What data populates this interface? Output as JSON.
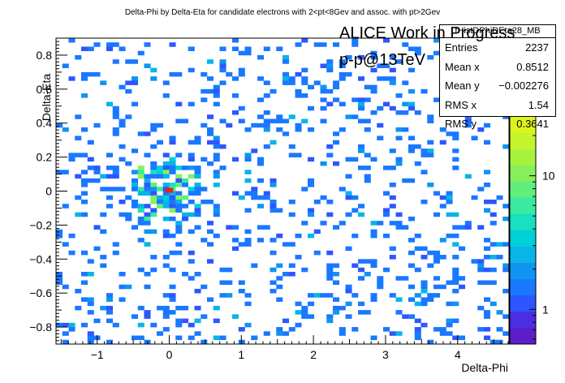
{
  "chart_data": {
    "type": "heatmap",
    "title": "Delta-Phi by Delta-Eta for candidate electrons with 2<pt<8Gev and assoc. with pt>2Gev",
    "xlabel": "Delta-Phi",
    "ylabel": "Delta-Eta",
    "xlim": [
      -1.5708,
      4.7124
    ],
    "ylim": [
      -0.9,
      0.9
    ],
    "xticks": [
      "−1",
      "0",
      "1",
      "2",
      "3",
      "4"
    ],
    "xtick_values": [
      -1,
      0,
      1,
      2,
      3,
      4
    ],
    "yticks": [
      "−0.8",
      "−0.6",
      "−0.4",
      "−0.2",
      "0",
      "0.2",
      "0.4",
      "0.6",
      "0.8"
    ],
    "ytick_values": [
      -0.8,
      -0.6,
      -0.4,
      -0.2,
      0,
      0.2,
      0.4,
      0.6,
      0.8
    ],
    "z_scale": "log",
    "z_ticks": [
      "1",
      "10"
    ],
    "palette": [
      "#5c1ec8",
      "#4b2ee0",
      "#2d56ff",
      "#1a78ff",
      "#0f95f0",
      "#08b4e8",
      "#00d0d8",
      "#18e0c0",
      "#3aeaa0",
      "#60ee7c",
      "#86f05a",
      "#a8f23e",
      "#c6f42c",
      "#dcf41e"
    ],
    "peak": {
      "x": 0.0,
      "y": 0.0,
      "color": "#e8231e"
    },
    "grid": false
  },
  "annotation": {
    "line1": "ALICE Work in Progress",
    "line2": "p-p@13TeV"
  },
  "stats": {
    "name": "fHistDPhiDEta28_MB",
    "rows": [
      {
        "label": "Entries",
        "value": "2237"
      },
      {
        "label": "Mean x",
        "value": "0.8512"
      },
      {
        "label": "Mean y",
        "value": "−0.002276"
      },
      {
        "label": "RMS x",
        "value": "1.54"
      },
      {
        "label": "RMS y",
        "value": "0.3641"
      }
    ]
  }
}
